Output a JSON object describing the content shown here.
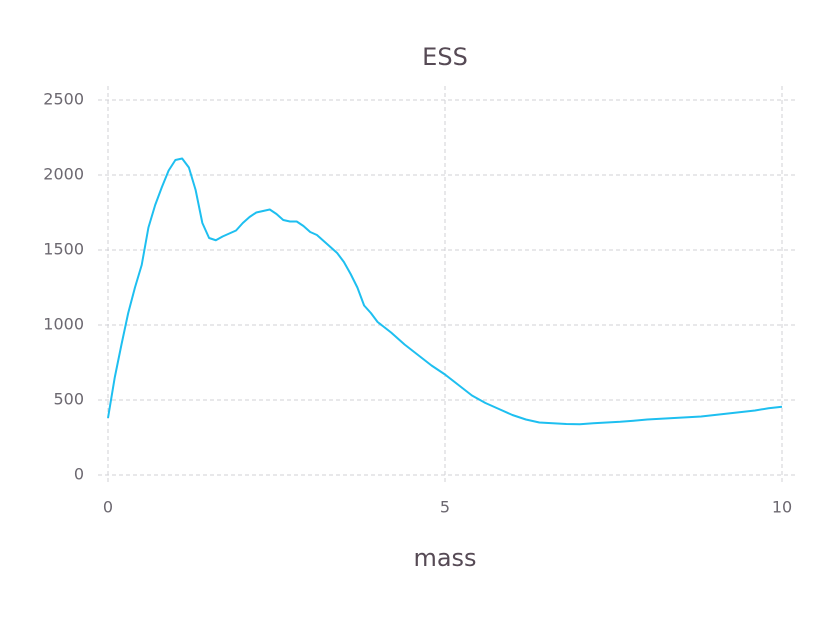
{
  "chart_data": {
    "type": "line",
    "title": "ESS",
    "x_label": "mass",
    "x": [
      0,
      0.1,
      0.2,
      0.3,
      0.4,
      0.5,
      0.6,
      0.7,
      0.8,
      0.9,
      1.0,
      1.1,
      1.2,
      1.3,
      1.4,
      1.5,
      1.6,
      1.7,
      1.8,
      1.9,
      2.0,
      2.1,
      2.2,
      2.3,
      2.4,
      2.5,
      2.6,
      2.7,
      2.8,
      2.9,
      3.0,
      3.1,
      3.2,
      3.3,
      3.4,
      3.5,
      3.6,
      3.7,
      3.8,
      3.9,
      4.0,
      4.2,
      4.4,
      4.6,
      4.8,
      5.0,
      5.2,
      5.4,
      5.6,
      5.8,
      6.0,
      6.2,
      6.4,
      6.6,
      6.8,
      7.0,
      7.2,
      7.4,
      7.6,
      7.8,
      8.0,
      8.2,
      8.4,
      8.6,
      8.8,
      9.0,
      9.2,
      9.4,
      9.6,
      9.8,
      10.0
    ],
    "series": [
      {
        "name": "ESS",
        "color": "#1ebff0",
        "values": [
          380,
          650,
          870,
          1080,
          1250,
          1400,
          1650,
          1800,
          1920,
          2030,
          2100,
          2110,
          2050,
          1900,
          1680,
          1580,
          1565,
          1590,
          1610,
          1630,
          1680,
          1720,
          1750,
          1760,
          1770,
          1740,
          1700,
          1690,
          1690,
          1660,
          1620,
          1600,
          1560,
          1520,
          1480,
          1420,
          1340,
          1250,
          1130,
          1080,
          1020,
          950,
          870,
          800,
          730,
          670,
          600,
          530,
          480,
          440,
          400,
          370,
          350,
          345,
          340,
          338,
          345,
          350,
          355,
          362,
          370,
          375,
          380,
          385,
          390,
          400,
          410,
          420,
          430,
          445,
          455
        ]
      }
    ],
    "xlim": [
      0,
      10
    ],
    "ylim": [
      0,
      2500
    ],
    "xticks": [
      0,
      5,
      10
    ],
    "yticks": [
      0,
      500,
      1000,
      1500,
      2000,
      2500
    ],
    "grid": true
  }
}
